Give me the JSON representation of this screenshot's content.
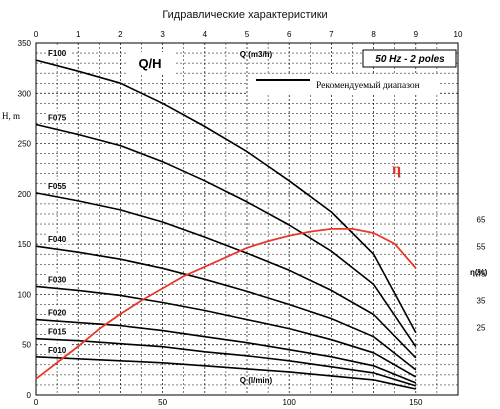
{
  "title": "Гидравлические характеристики",
  "chart_label": "Q/H",
  "frequency_label": "50 Hz - 2 poles",
  "legend": "Рекомендуемый диапазон",
  "efficiency_symbol": "η",
  "chart_data": {
    "type": "line",
    "title": "Гидравлические характеристики",
    "ylabel": "H, m",
    "x_top_label": "Q (m3/h)",
    "x_bottom_label": "Q (l/min)",
    "eta_axis_label": "η(%)",
    "x_top_ticks": [
      "0",
      "1",
      "2",
      "3",
      "4",
      "5",
      "6",
      "7",
      "8",
      "9",
      "10"
    ],
    "x_bottom_ticks": [
      "0",
      "50",
      "100",
      "150"
    ],
    "y_ticks": [
      "0",
      "50",
      "100",
      "150",
      "200",
      "250",
      "300",
      "350"
    ],
    "eta_ticks": [
      "25",
      "35",
      "45",
      "55",
      "65"
    ],
    "xlim": [
      0,
      10
    ],
    "ylim": [
      0,
      350
    ],
    "grid": true,
    "colors": {
      "head_curves": "#000000",
      "efficiency": "#e8382a",
      "grid": "#000000"
    },
    "series": [
      {
        "name": "F100",
        "x": [
          0,
          1,
          2,
          3,
          4,
          5,
          6,
          7,
          8,
          9
        ],
        "y": [
          333,
          322,
          310,
          290,
          267,
          242,
          213,
          182,
          140,
          62
        ]
      },
      {
        "name": "F075",
        "x": [
          0,
          1,
          2,
          3,
          4,
          5,
          6,
          7,
          8,
          9
        ],
        "y": [
          269,
          259,
          248,
          232,
          213,
          192,
          169,
          143,
          110,
          48
        ]
      },
      {
        "name": "F055",
        "x": [
          0,
          1,
          2,
          3,
          4,
          5,
          6,
          7,
          8,
          9
        ],
        "y": [
          201,
          193,
          184,
          172,
          157,
          141,
          124,
          104,
          80,
          37
        ]
      },
      {
        "name": "F040",
        "x": [
          0,
          1,
          2,
          3,
          4,
          5,
          6,
          7,
          8,
          9
        ],
        "y": [
          148,
          142,
          135,
          126,
          115,
          103,
          90,
          76,
          58,
          25
        ]
      },
      {
        "name": "F030",
        "x": [
          0,
          1,
          2,
          3,
          4,
          5,
          6,
          7,
          8,
          9
        ],
        "y": [
          108,
          104,
          99,
          92,
          84,
          75,
          66,
          55,
          42,
          18
        ]
      },
      {
        "name": "F020",
        "x": [
          0,
          1,
          2,
          3,
          4,
          5,
          6,
          7,
          8,
          9
        ],
        "y": [
          75,
          72,
          69,
          64,
          58,
          52,
          45,
          38,
          29,
          12
        ]
      },
      {
        "name": "F015",
        "x": [
          0,
          1,
          2,
          3,
          4,
          5,
          6,
          7,
          8,
          9
        ],
        "y": [
          56,
          54,
          51,
          48,
          43,
          39,
          34,
          28,
          22,
          9
        ]
      },
      {
        "name": "F010",
        "x": [
          0,
          1,
          2,
          3,
          4,
          5,
          6,
          7,
          8,
          9
        ],
        "y": [
          38,
          36,
          34,
          32,
          29,
          26,
          23,
          19,
          15,
          6
        ]
      }
    ],
    "efficiency": {
      "name": "η",
      "x": [
        0,
        0.5,
        1,
        1.5,
        2,
        2.5,
        3,
        3.5,
        4,
        4.5,
        5,
        5.5,
        6,
        6.5,
        7,
        7.5,
        8,
        8.5,
        9
      ],
      "eta": [
        6,
        12,
        18,
        24.5,
        30,
        35,
        39.5,
        44,
        47.5,
        51,
        54.5,
        57,
        59,
        60.5,
        61.5,
        61.5,
        60,
        56,
        47
      ]
    },
    "recommended_range_q": [
      2,
      9
    ]
  }
}
